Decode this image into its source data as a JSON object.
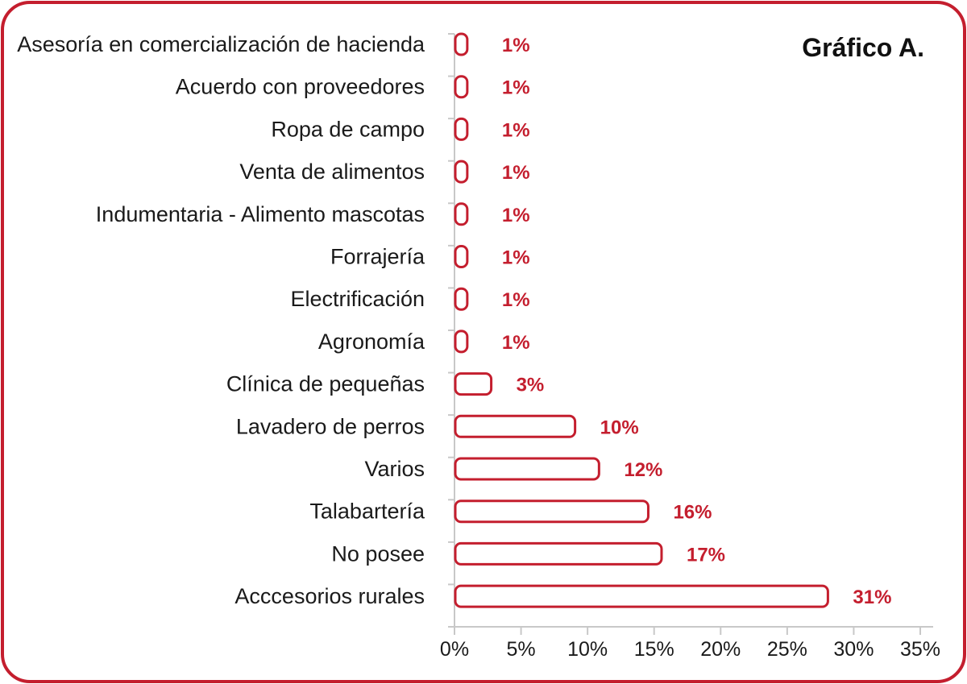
{
  "chart_data": {
    "type": "bar",
    "orientation": "horizontal",
    "title": "Gráfico A.",
    "categories": [
      "Asesoría en comercialización de hacienda",
      "Acuerdo con proveedores",
      "Ropa de campo",
      "Venta de alimentos",
      "Indumentaria - Alimento mascotas",
      "Forrajería",
      "Electrificación",
      "Agronomía",
      "Clínica de pequeñas",
      "Lavadero de perros",
      "Varios",
      "Talabartería",
      "No posee",
      "Acccesorios rurales"
    ],
    "values": [
      1,
      1,
      1,
      1,
      1,
      1,
      1,
      1,
      3,
      10,
      12,
      16,
      17,
      31
    ],
    "data_labels": [
      "1%",
      "1%",
      "1%",
      "1%",
      "1%",
      "1%",
      "1%",
      "1%",
      "3%",
      "10%",
      "12%",
      "16%",
      "17%",
      "31%"
    ],
    "bar_lengths_estimated": [
      0.9,
      0.9,
      0.9,
      0.9,
      0.9,
      0.9,
      0.9,
      0.9,
      2.7,
      9,
      10.8,
      14.5,
      15.5,
      28
    ],
    "xlim": [
      0,
      35
    ],
    "xticks": [
      "0%",
      "5%",
      "10%",
      "15%",
      "20%",
      "25%",
      "30%",
      "35%"
    ],
    "xlabel": "",
    "ylabel": "",
    "grid": false,
    "colors": {
      "bar_stroke": "#c41e2e",
      "label": "#c41e2e",
      "border": "#c41e2e",
      "axis": "#c8c8c8"
    }
  }
}
